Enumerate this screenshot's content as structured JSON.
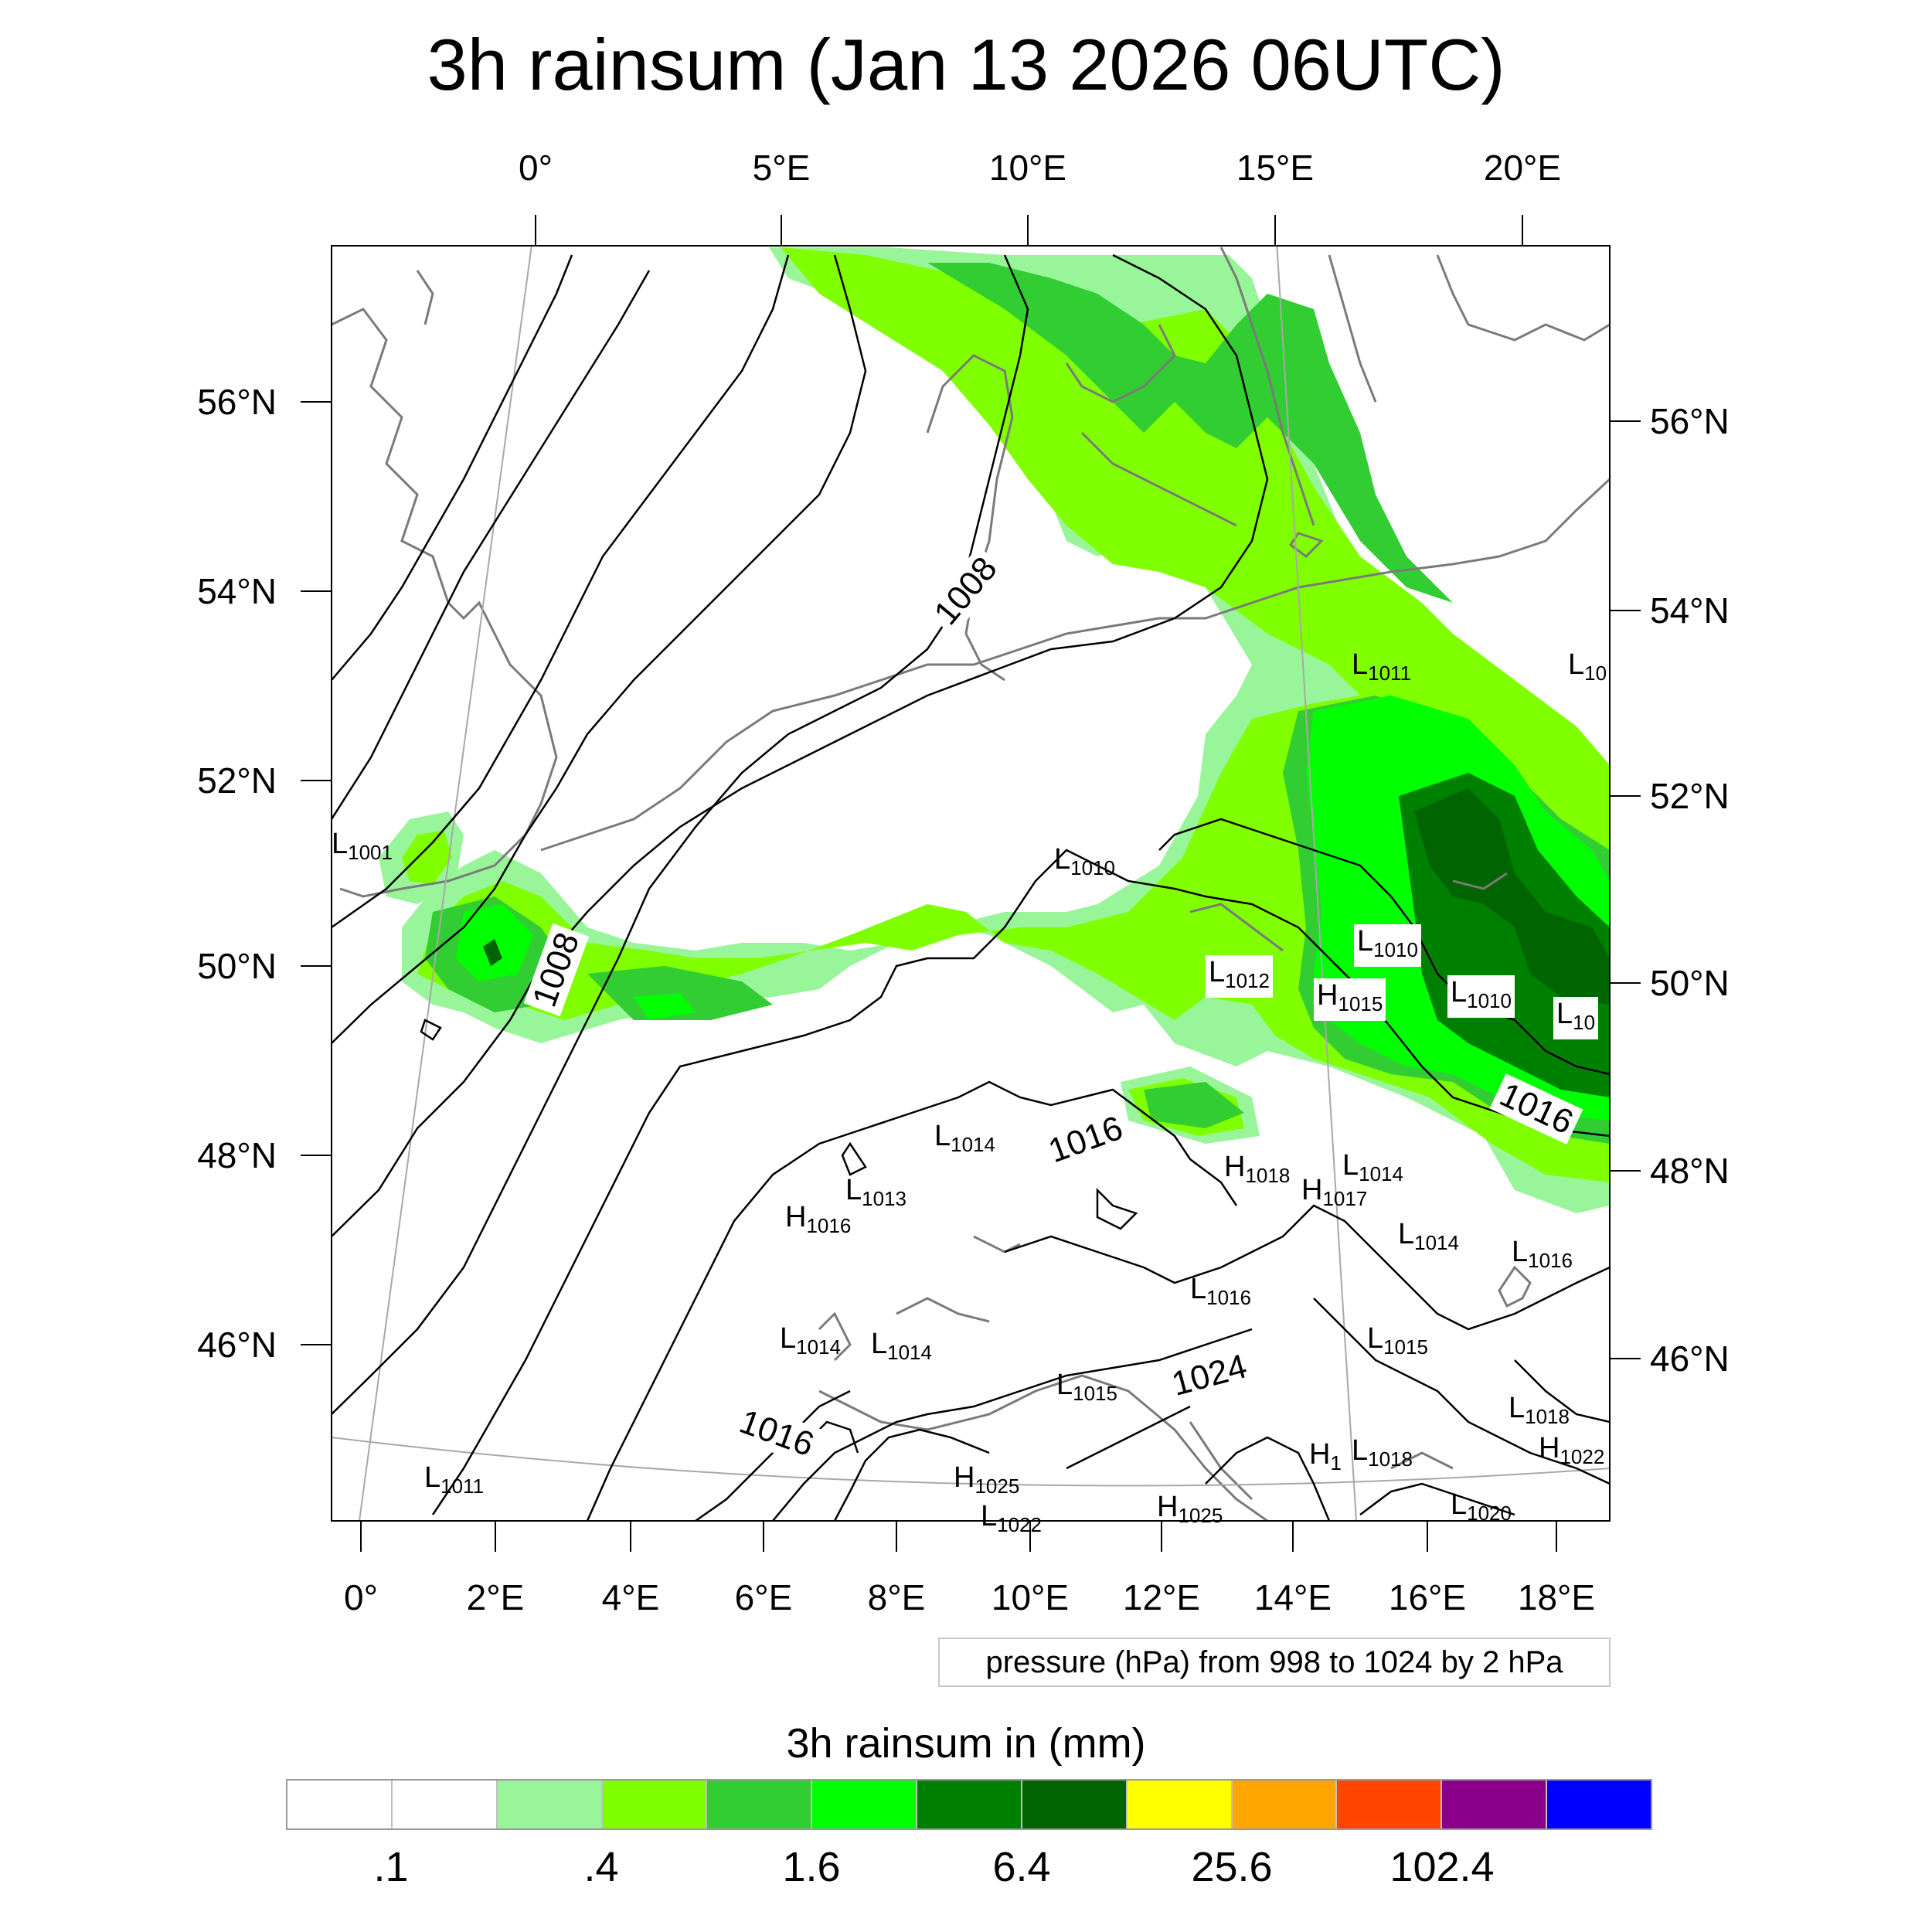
{
  "title": "3h rainsum (Jan 13 2026 06UTC)",
  "top_ticks": [
    "0°",
    "5°E",
    "10°E",
    "15°E",
    "20°E"
  ],
  "bottom_ticks": [
    "0°",
    "2°E",
    "4°E",
    "6°E",
    "8°E",
    "10°E",
    "12°E",
    "14°E",
    "16°E",
    "18°E"
  ],
  "left_ticks": [
    "56°N",
    "54°N",
    "52°N",
    "50°N",
    "48°N",
    "46°N"
  ],
  "right_ticks": [
    "56°N",
    "54°N",
    "52°N",
    "50°N",
    "48°N",
    "46°N"
  ],
  "pressure_centers": [
    {
      "type": "L",
      "value": "1001"
    },
    {
      "type": "L",
      "value": "1011"
    },
    {
      "type": "L",
      "value": "10"
    },
    {
      "type": "L",
      "value": "1010"
    },
    {
      "type": "L",
      "value": "1012"
    },
    {
      "type": "L",
      "value": "1010"
    },
    {
      "type": "H",
      "value": "1015"
    },
    {
      "type": "L",
      "value": "1010"
    },
    {
      "type": "L",
      "value": "10"
    },
    {
      "type": "L",
      "value": "1014"
    },
    {
      "type": "L",
      "value": "1013"
    },
    {
      "type": "H",
      "value": "1016"
    },
    {
      "type": "H",
      "value": "1018"
    },
    {
      "type": "H",
      "value": "1017"
    },
    {
      "type": "L",
      "value": "1014"
    },
    {
      "type": "L",
      "value": "1014"
    },
    {
      "type": "L",
      "value": "1016"
    },
    {
      "type": "L",
      "value": "1016"
    },
    {
      "type": "L",
      "value": "1014"
    },
    {
      "type": "L",
      "value": "1014"
    },
    {
      "type": "L",
      "value": "1015"
    },
    {
      "type": "L",
      "value": "1015"
    },
    {
      "type": "L",
      "value": "1018"
    },
    {
      "type": "L",
      "value": "1018"
    },
    {
      "type": "H",
      "value": "1022"
    },
    {
      "type": "H",
      "value": "1"
    },
    {
      "type": "L",
      "value": "1011"
    },
    {
      "type": "H",
      "value": "1025"
    },
    {
      "type": "L",
      "value": "1022"
    },
    {
      "type": "H",
      "value": "1025"
    },
    {
      "type": "L",
      "value": "1020"
    }
  ],
  "isobar_labels": [
    "1008",
    "1008",
    "1016",
    "1016",
    "1016",
    "1024"
  ],
  "info_box": "pressure (hPa) from 998 to 1024 by 2 hPa",
  "colorbar": {
    "title": "3h rainsum in (mm)",
    "colors": [
      "#ffffff",
      "#ffffff",
      "#99f599",
      "#80ff00",
      "#32cd32",
      "#00ff00",
      "#008000",
      "#006400",
      "#ffff00",
      "#ffa500",
      "#ff4500",
      "#8b008b",
      "#0000ff"
    ],
    "labels": [
      ".1",
      ".4",
      "1.6",
      "6.4",
      "25.6",
      "102.4"
    ]
  }
}
